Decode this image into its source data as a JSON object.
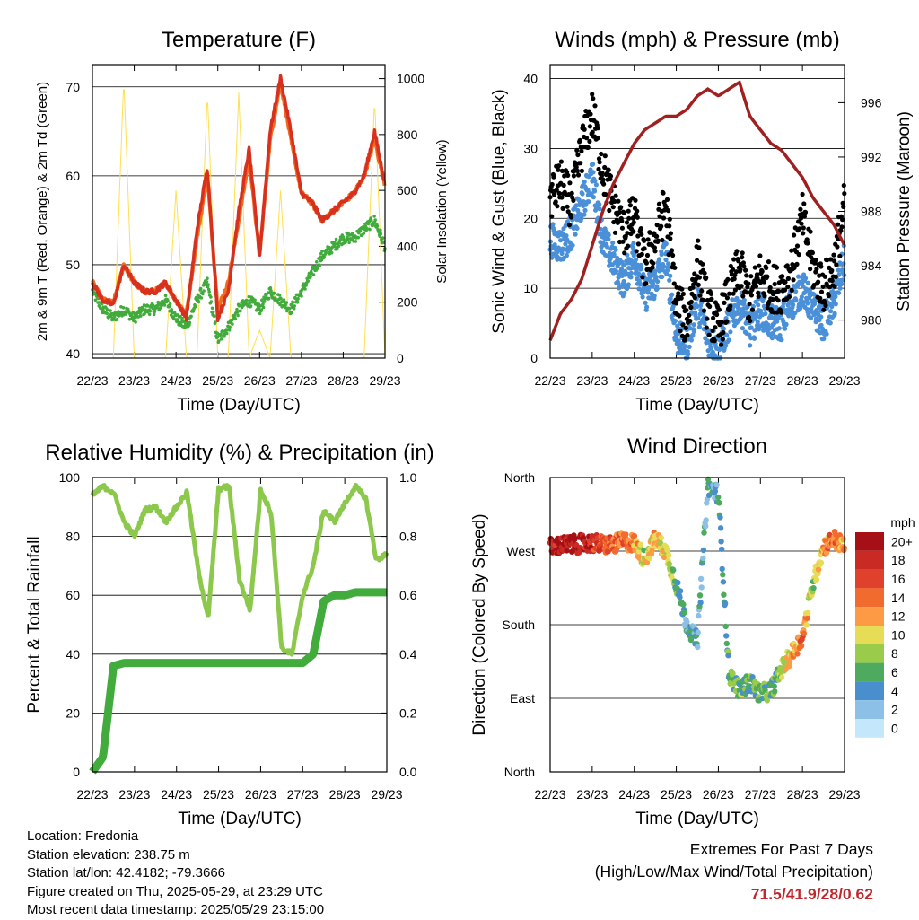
{
  "x_ticks": [
    "22/23",
    "23/23",
    "24/23",
    "25/23",
    "26/23",
    "27/23",
    "28/23",
    "29/23"
  ],
  "x_label": "Time (Day/UTC)",
  "chart_data": [
    {
      "type": "line",
      "title": "Temperature (F)",
      "xlabel": "Time (Day/UTC)",
      "ylabel": "2m & 9m T (Red, Orange) & 2m Td (Green)",
      "y2label": "Solar Insolation (Yellow)",
      "ylim": [
        39.5,
        72.5
      ],
      "y_ticks": [
        40,
        50,
        60,
        70
      ],
      "y2lim": [
        0,
        1050
      ],
      "y2_ticks": [
        0,
        200,
        400,
        600,
        800,
        1000
      ],
      "grid": "horizontal",
      "x_days": [
        0,
        0.25,
        0.5,
        0.75,
        1,
        1.25,
        1.5,
        1.75,
        2,
        2.25,
        2.5,
        2.75,
        3,
        3.25,
        3.5,
        3.75,
        4,
        4.25,
        4.5,
        4.75,
        5,
        5.25,
        5.5,
        5.75,
        6,
        6.25,
        6.5,
        6.75,
        7
      ],
      "series": [
        {
          "color": "#d7301f",
          "values": [
            48,
            46,
            45.5,
            50,
            48,
            47,
            47,
            48,
            46,
            44,
            54,
            61,
            44,
            47,
            56,
            63,
            51,
            65,
            71,
            65,
            58,
            57,
            55,
            56,
            57,
            58,
            60,
            65,
            59
          ]
        },
        {
          "color": "#f26b1d",
          "values": [
            48,
            46,
            45.7,
            50,
            48,
            47,
            47,
            48,
            46,
            44.5,
            53,
            60,
            45,
            48,
            55,
            62,
            51,
            64,
            70.5,
            64,
            58,
            57,
            55,
            56,
            57,
            58,
            60,
            64,
            59
          ]
        },
        {
          "color": "#41ab3c",
          "values": [
            47,
            45,
            44,
            45,
            44,
            45,
            45,
            46,
            44,
            43,
            46,
            48,
            41.5,
            43,
            45,
            46,
            45,
            47,
            46,
            45,
            47,
            49,
            51,
            52,
            53,
            53,
            54,
            55,
            52
          ]
        },
        {
          "color": "#fde052",
          "values": [
            0,
            0,
            0,
            1000,
            0,
            0,
            0,
            0,
            600,
            0,
            0,
            950,
            0,
            0,
            950,
            0,
            100,
            0,
            600,
            0,
            0,
            0,
            0,
            0,
            0,
            0,
            0,
            930,
            0
          ]
        }
      ]
    },
    {
      "type": "scatter",
      "title": "Winds (mph) & Pressure (mb)",
      "xlabel": "Time (Day/UTC)",
      "ylabel": "Sonic Wind & Gust (Blue, Black)",
      "y2label": "Station Pressure (Maroon)",
      "ylim": [
        0,
        42
      ],
      "y_ticks": [
        0,
        10,
        20,
        30,
        40
      ],
      "y2lim": [
        977.2,
        998.8
      ],
      "y2_ticks": [
        980,
        984,
        988,
        992,
        996
      ],
      "grid": "horizontal",
      "x_days": [
        0,
        0.25,
        0.5,
        0.75,
        1,
        1.25,
        1.5,
        1.75,
        2,
        2.25,
        2.5,
        2.75,
        3,
        3.25,
        3.5,
        3.75,
        4,
        4.25,
        4.5,
        4.75,
        5,
        5.25,
        5.5,
        5.75,
        6,
        6.25,
        6.5,
        6.75,
        7
      ],
      "series": [
        {
          "color": "#000000",
          "values": [
            23,
            25,
            22,
            30,
            35,
            27,
            22,
            18,
            20,
            13,
            17,
            22,
            8,
            5,
            14,
            7,
            4,
            9,
            13,
            8,
            12,
            10,
            10,
            13,
            20,
            13,
            10,
            13,
            22
          ]
        },
        {
          "color": "#4a90d9",
          "values": [
            17,
            16,
            18,
            22,
            26,
            17,
            14,
            11,
            15,
            9,
            11,
            15,
            3,
            2,
            8,
            3,
            1,
            5,
            8,
            4,
            7,
            5,
            5,
            8,
            10,
            7,
            5,
            8,
            14
          ]
        },
        {
          "color": "#a02020",
          "values": [
            978.5,
            980.5,
            981.5,
            983,
            985.5,
            988,
            990,
            991.5,
            993,
            994,
            994.5,
            995,
            995,
            995.5,
            996.5,
            997,
            996.5,
            997,
            997.5,
            995,
            994,
            993,
            992.5,
            991.5,
            990.5,
            989,
            988,
            987,
            985.5
          ]
        }
      ]
    },
    {
      "type": "line",
      "title": "Relative Humidity (%) & Precipitation (in)",
      "xlabel": "Time (Day/UTC)",
      "ylabel": "Percent & Total Rainfall",
      "ylim": [
        0,
        100
      ],
      "y_ticks": [
        0,
        20,
        40,
        60,
        80,
        100
      ],
      "y2lim": [
        0,
        1.0
      ],
      "y2_ticks": [
        "0.0",
        "0.2",
        "0.4",
        "0.6",
        "0.8",
        "1.0"
      ],
      "grid": "horizontal",
      "x_days": [
        0,
        0.25,
        0.5,
        0.75,
        1,
        1.25,
        1.5,
        1.75,
        2,
        2.25,
        2.5,
        2.75,
        3,
        3.25,
        3.5,
        3.75,
        4,
        4.25,
        4.5,
        4.75,
        5,
        5.25,
        5.5,
        5.75,
        6,
        6.25,
        6.5,
        6.75,
        7
      ],
      "series": [
        {
          "color": "#8cc84b",
          "values": [
            94,
            97,
            95,
            85,
            80,
            89,
            90,
            85,
            90,
            95,
            70,
            52,
            96,
            97,
            65,
            55,
            96,
            88,
            42,
            40,
            60,
            70,
            89,
            85,
            91,
            97,
            93,
            72,
            74
          ]
        },
        {
          "color": "#41ab3c",
          "values": [
            0,
            0.05,
            0.36,
            0.37,
            0.37,
            0.37,
            0.37,
            0.37,
            0.37,
            0.37,
            0.37,
            0.37,
            0.37,
            0.37,
            0.37,
            0.37,
            0.37,
            0.37,
            0.37,
            0.37,
            0.37,
            0.4,
            0.58,
            0.6,
            0.6,
            0.61,
            0.61,
            0.61,
            0.61
          ]
        }
      ]
    },
    {
      "type": "scatter",
      "title": "Wind Direction",
      "xlabel": "Time (Day/UTC)",
      "ylabel": "Direction (Colored By Speed)",
      "y_ticks": [
        "North",
        "East",
        "South",
        "West",
        "North"
      ],
      "grid": "horizontal",
      "x_days": [
        0,
        0.25,
        0.5,
        0.75,
        1,
        1.25,
        1.5,
        1.75,
        2,
        2.25,
        2.5,
        2.75,
        3,
        3.25,
        3.5,
        3.75,
        4,
        4.25,
        4.5,
        4.75,
        5,
        5.25,
        5.5,
        5.75,
        6,
        6.25,
        6.5,
        6.75,
        7
      ],
      "direction_deg": [
        275,
        277,
        278,
        279,
        280,
        278,
        278,
        282,
        280,
        260,
        285,
        270,
        230,
        180,
        160,
        350,
        340,
        120,
        100,
        110,
        95,
        100,
        125,
        145,
        165,
        230,
        275,
        285,
        275
      ],
      "speed_mph": [
        18,
        20,
        20,
        19,
        17,
        16,
        14,
        14,
        12,
        9,
        12,
        10,
        6,
        4,
        4,
        4,
        4,
        6,
        7,
        6,
        7,
        6,
        8,
        12,
        14,
        8,
        12,
        14,
        12
      ],
      "legend": {
        "title": "mph",
        "labels": [
          "20+",
          "18",
          "16",
          "14",
          "12",
          "10",
          "8",
          "6",
          "4",
          "2",
          "0"
        ],
        "colors": [
          "#a50f15",
          "#c92a23",
          "#e0412c",
          "#f26b2e",
          "#fd9a45",
          "#e6dc56",
          "#9acb4a",
          "#4daa5e",
          "#4a8fcd",
          "#8dc0e6",
          "#c4e7fb"
        ]
      }
    }
  ],
  "info": {
    "location": "Location: Fredonia",
    "elevation": "Station elevation: 238.75 m",
    "latlon": "Station lat/lon: 42.4182; -79.3666",
    "created": "Figure created on Thu, 2025-05-29, at 23:29 UTC",
    "recent": "Most recent data timestamp: 2025/05/29 23:15:00"
  },
  "extremes": {
    "line1": "Extremes For Past 7 Days",
    "line2": "(High/Low/Max Wind/Total Precipitation)",
    "values": "71.5/41.9/28/0.62"
  }
}
